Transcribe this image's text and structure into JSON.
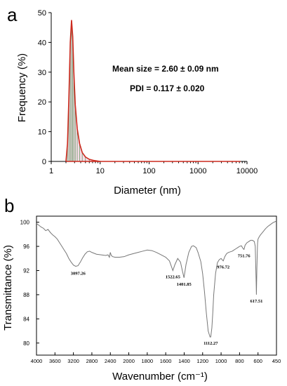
{
  "chart_data": [
    {
      "type": "bar",
      "panel_label": "a",
      "xscale": "log",
      "xlim": [
        1,
        10000
      ],
      "ylim": [
        0,
        50
      ],
      "xticks": [
        1,
        10,
        100,
        1000,
        10000
      ],
      "xtick_labels": [
        "1",
        "10",
        "100",
        "1000",
        "10000"
      ],
      "yticks": [
        0,
        10,
        20,
        30,
        40,
        50
      ],
      "ytick_labels": [
        "0",
        "10",
        "20",
        "30",
        "40",
        "50"
      ],
      "xlabel": "Diameter (nm)",
      "ylabel": "Frequency (%)",
      "annotations": [
        "Mean size = 2.60 ± 0.09 nm",
        "PDI = 0.117 ± 0.020"
      ],
      "series": [
        {
          "color": "#cc2a1e",
          "x": [
            2.0,
            2.15,
            2.3,
            2.45,
            2.6,
            2.75,
            2.9,
            3.1,
            3.4,
            3.8,
            4.3,
            5.0,
            6.0,
            7.5,
            10.0
          ],
          "y": [
            0,
            6,
            22,
            40,
            47.5,
            42,
            30,
            19,
            11,
            6,
            3,
            1.5,
            0.7,
            0.3,
            0
          ]
        }
      ],
      "grid": false
    },
    {
      "type": "line",
      "panel_label": "b",
      "xlim": [
        4000,
        450
      ],
      "ylim": [
        78,
        101
      ],
      "xticks": [
        4000,
        3600,
        3200,
        2800,
        2400,
        2000,
        1800,
        1600,
        1400,
        1200,
        1000,
        800,
        600,
        450
      ],
      "xtick_labels": [
        "4000",
        "3600",
        "3200",
        "2800",
        "2400",
        "2000",
        "1800",
        "1600",
        "1400",
        "1200",
        "1000",
        "800",
        "600",
        "450"
      ],
      "yticks": [
        80,
        84,
        88,
        92,
        96,
        100
      ],
      "ytick_labels": [
        "80",
        "84",
        "88",
        "92",
        "96",
        "100"
      ],
      "xlabel": "Wavenumber (cm⁻¹)",
      "ylabel": "Transmittance (%)",
      "peak_labels": [
        {
          "x": 3097.26,
          "y": 92.6,
          "text": "3097.26"
        },
        {
          "x": 1522.65,
          "y": 92.0,
          "text": "1522.65"
        },
        {
          "x": 1401.85,
          "y": 90.8,
          "text": "1401.85"
        },
        {
          "x": 1112.27,
          "y": 81.0,
          "text": "1112.27"
        },
        {
          "x": 976.72,
          "y": 93.6,
          "text": "976.72"
        },
        {
          "x": 751.76,
          "y": 95.5,
          "text": "751.76"
        },
        {
          "x": 617.51,
          "y": 88.0,
          "text": "617.51"
        }
      ],
      "series": [
        {
          "color": "#777777",
          "x": [
            4000,
            3950,
            3900,
            3850,
            3800,
            3750,
            3700,
            3650,
            3600,
            3550,
            3500,
            3450,
            3400,
            3350,
            3300,
            3250,
            3200,
            3150,
            3100,
            3050,
            3000,
            2950,
            2900,
            2850,
            2800,
            2700,
            2600,
            2500,
            2450,
            2420,
            2400,
            2380,
            2350,
            2300,
            2200,
            2100,
            2000,
            1950,
            1900,
            1850,
            1800,
            1750,
            1700,
            1650,
            1600,
            1560,
            1522.65,
            1500,
            1470,
            1440,
            1420,
            1401.85,
            1380,
            1350,
            1320,
            1300,
            1270,
            1250,
            1220,
            1200,
            1180,
            1160,
            1140,
            1120,
            1112.27,
            1100,
            1090,
            1080,
            1060,
            1040,
            1020,
            1000,
            990,
            976.72,
            960,
            940,
            920,
            900,
            880,
            860,
            840,
            820,
            800,
            780,
            760,
            751.76,
            740,
            720,
            700,
            680,
            660,
            640,
            630,
            620,
            617.51,
            612,
            605,
            600,
            590,
            580,
            560,
            540,
            520,
            500,
            480,
            460,
            450
          ],
          "y": [
            99.8,
            99.5,
            99.2,
            99.0,
            98.6,
            98.8,
            98.3,
            97.9,
            97.6,
            97.2,
            96.6,
            96.0,
            95.4,
            94.8,
            94.0,
            93.4,
            92.9,
            92.7,
            92.8,
            93.4,
            94.1,
            94.7,
            95.1,
            95.2,
            95.0,
            94.7,
            94.6,
            94.5,
            94.6,
            94.2,
            95.0,
            94.5,
            94.3,
            94.2,
            94.2,
            94.3,
            94.6,
            94.8,
            95.0,
            95.2,
            95.4,
            95.3,
            95.0,
            94.6,
            94.2,
            93.6,
            92.0,
            93.0,
            94.0,
            93.4,
            92.0,
            90.8,
            93.0,
            95.0,
            96.0,
            96.1,
            95.8,
            95.0,
            93.5,
            91.5,
            88.5,
            85.0,
            82.0,
            81.0,
            81.0,
            82.5,
            85.0,
            88.0,
            91.5,
            93.3,
            93.8,
            94.0,
            93.8,
            93.6,
            94.3,
            94.8,
            95.0,
            95.1,
            95.2,
            95.4,
            95.6,
            95.8,
            96.0,
            96.1,
            95.6,
            95.5,
            96.2,
            96.6,
            96.8,
            97.0,
            97.0,
            96.8,
            96.0,
            90.0,
            88.0,
            92.5,
            96.5,
            97.2,
            97.6,
            97.9,
            98.4,
            98.9,
            99.3,
            99.6,
            99.9,
            100.1,
            100.2
          ]
        }
      ],
      "grid": false
    }
  ]
}
